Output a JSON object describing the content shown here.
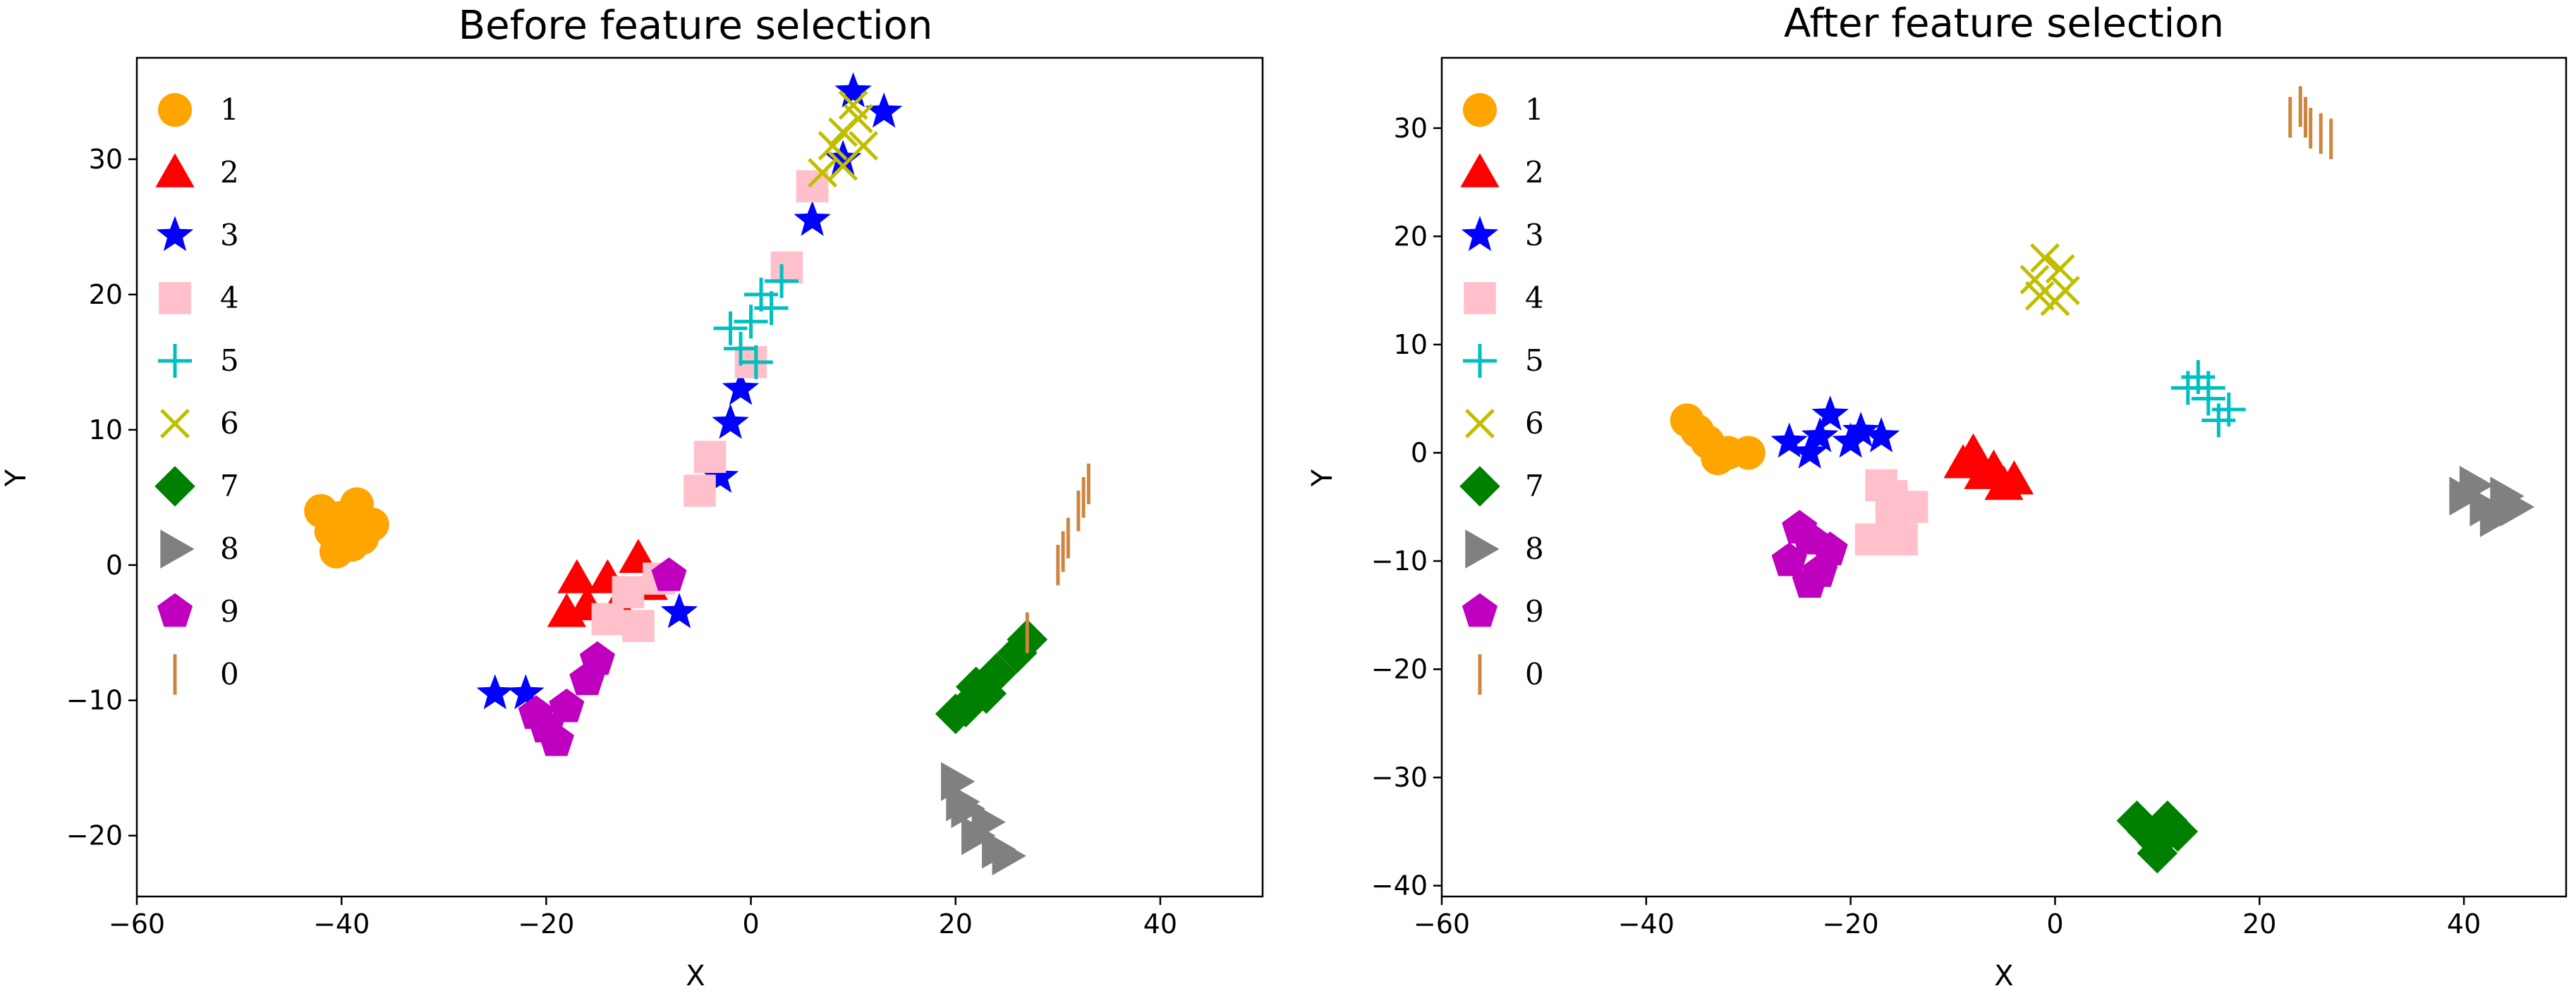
{
  "chart_data": [
    {
      "type": "scatter",
      "title": "Before feature selection",
      "xlabel": "X",
      "ylabel": "Y",
      "xlim": [
        -60,
        50
      ],
      "ylim": [
        -24.5,
        37.5
      ],
      "xticks": [
        -60,
        -40,
        -20,
        0,
        20,
        40
      ],
      "yticks": [
        -20,
        -10,
        0,
        10,
        20,
        30
      ],
      "legend": "top-left",
      "series": [
        {
          "name": "1",
          "marker": "circle",
          "color": "#FFA500",
          "points": [
            [
              -40,
              3.5
            ],
            [
              -38,
              2
            ],
            [
              -42,
              4
            ],
            [
              -39,
              1.5
            ],
            [
              -37,
              3
            ],
            [
              -41,
              2.5
            ],
            [
              -38.5,
              4.5
            ],
            [
              -40.5,
              1
            ]
          ]
        },
        {
          "name": "2",
          "marker": "triangle",
          "color": "#FF0000",
          "points": [
            [
              -17,
              -1
            ],
            [
              -14,
              -1
            ],
            [
              -11,
              0.5
            ],
            [
              -16,
              -3
            ],
            [
              -13,
              -3
            ],
            [
              -10,
              -1.5
            ],
            [
              -18,
              -3.5
            ]
          ]
        },
        {
          "name": "3",
          "marker": "star",
          "color": "#0000FF",
          "points": [
            [
              -25,
              -9.5
            ],
            [
              -22,
              -9.5
            ],
            [
              -7,
              -3.5
            ],
            [
              -3,
              6.5
            ],
            [
              -2,
              10.5
            ],
            [
              -1,
              13
            ],
            [
              6,
              25.5
            ],
            [
              9,
              30
            ],
            [
              13,
              33.5
            ],
            [
              10,
              35
            ]
          ]
        },
        {
          "name": "4",
          "marker": "square",
          "color": "#FFC0CB",
          "points": [
            [
              -14,
              -4
            ],
            [
              -11,
              -4.5
            ],
            [
              -9,
              -1
            ],
            [
              -12,
              -2
            ],
            [
              -5,
              5.5
            ],
            [
              -4,
              8
            ],
            [
              0,
              15
            ],
            [
              3.5,
              22
            ],
            [
              6,
              28
            ]
          ]
        },
        {
          "name": "5",
          "marker": "plus",
          "color": "#00BFBF",
          "points": [
            [
              -1,
              16
            ],
            [
              0,
              18
            ],
            [
              1,
              20
            ],
            [
              3,
              21
            ],
            [
              -2,
              17.5
            ],
            [
              0.5,
              15
            ],
            [
              2,
              19
            ]
          ]
        },
        {
          "name": "6",
          "marker": "x",
          "color": "#BFBF00",
          "points": [
            [
              7,
              29
            ],
            [
              8,
              31
            ],
            [
              9,
              32
            ],
            [
              10,
              34
            ],
            [
              11,
              31
            ],
            [
              9,
              29.5
            ],
            [
              10.5,
              33
            ]
          ]
        },
        {
          "name": "7",
          "marker": "diamond",
          "color": "#008000",
          "points": [
            [
              20,
              -11
            ],
            [
              22,
              -9
            ],
            [
              24,
              -8
            ],
            [
              26,
              -6.5
            ],
            [
              27,
              -5.5
            ],
            [
              21,
              -10.5
            ],
            [
              23,
              -9.5
            ]
          ]
        },
        {
          "name": "8",
          "marker": "triangle-right",
          "color": "#808080",
          "points": [
            [
              20,
              -16
            ],
            [
              21,
              -18
            ],
            [
              22,
              -20
            ],
            [
              24,
              -21
            ],
            [
              25,
              -21.5
            ],
            [
              20.5,
              -17.5
            ],
            [
              23,
              -19
            ]
          ]
        },
        {
          "name": "9",
          "marker": "pentagon",
          "color": "#BF00BF",
          "points": [
            [
              -20,
              -12
            ],
            [
              -18,
              -10.5
            ],
            [
              -16,
              -8.5
            ],
            [
              -15,
              -7
            ],
            [
              -21,
              -11
            ],
            [
              -19,
              -13
            ],
            [
              -8,
              -0.8
            ]
          ]
        },
        {
          "name": "0",
          "marker": "vline",
          "color": "#CD853F",
          "points": [
            [
              27,
              -5
            ],
            [
              30,
              0
            ],
            [
              31,
              2
            ],
            [
              32,
              4
            ],
            [
              33,
              6
            ],
            [
              30.5,
              1
            ],
            [
              32.5,
              5
            ]
          ]
        }
      ]
    },
    {
      "type": "scatter",
      "title": "After feature selection",
      "xlabel": "X",
      "ylabel": "Y",
      "xlim": [
        -60,
        50
      ],
      "ylim": [
        -41,
        36.5
      ],
      "xticks": [
        -60,
        -40,
        -20,
        0,
        20,
        40
      ],
      "yticks": [
        -40,
        -30,
        -20,
        -10,
        0,
        10,
        20,
        30
      ],
      "legend": "top-left",
      "series": [
        {
          "name": "1",
          "marker": "circle",
          "color": "#FFA500",
          "points": [
            [
              -36,
              3
            ],
            [
              -34,
              1
            ],
            [
              -32,
              0
            ],
            [
              -30,
              0
            ],
            [
              -35,
              2
            ],
            [
              -33,
              -0.5
            ]
          ]
        },
        {
          "name": "2",
          "marker": "triangle",
          "color": "#FF0000",
          "points": [
            [
              -9,
              -1
            ],
            [
              -7,
              -2
            ],
            [
              -5,
              -3
            ],
            [
              -8,
              0
            ],
            [
              -6,
              -1.5
            ],
            [
              -4,
              -2.5
            ]
          ]
        },
        {
          "name": "3",
          "marker": "star",
          "color": "#0000FF",
          "points": [
            [
              -26,
              1
            ],
            [
              -23,
              1.5
            ],
            [
              -20,
              1
            ],
            [
              -17,
              1.5
            ],
            [
              -22,
              3.5
            ],
            [
              -24,
              0
            ],
            [
              -19,
              2
            ]
          ]
        },
        {
          "name": "4",
          "marker": "square",
          "color": "#FFC0CB",
          "points": [
            [
              -18,
              -8
            ],
            [
              -16,
              -6
            ],
            [
              -14,
              -5
            ],
            [
              -17,
              -3
            ],
            [
              -15,
              -8
            ],
            [
              -16,
              -4
            ]
          ]
        },
        {
          "name": "5",
          "marker": "plus",
          "color": "#00BFBF",
          "points": [
            [
              13,
              6
            ],
            [
              15,
              5
            ],
            [
              17,
              4
            ],
            [
              14,
              7
            ],
            [
              16,
              3
            ],
            [
              15,
              6
            ]
          ]
        },
        {
          "name": "6",
          "marker": "x",
          "color": "#BFBF00",
          "points": [
            [
              -2,
              16
            ],
            [
              0,
              14
            ],
            [
              1,
              15
            ],
            [
              -1,
              18
            ],
            [
              0.5,
              17
            ],
            [
              -1.5,
              14.5
            ]
          ]
        },
        {
          "name": "7",
          "marker": "diamond",
          "color": "#008000",
          "points": [
            [
              8,
              -34
            ],
            [
              10,
              -36
            ],
            [
              11,
              -34
            ],
            [
              9,
              -35
            ],
            [
              10,
              -37
            ],
            [
              12,
              -35
            ]
          ]
        },
        {
          "name": "8",
          "marker": "triangle-right",
          "color": "#808080",
          "points": [
            [
              40,
              -4
            ],
            [
              42,
              -5
            ],
            [
              44,
              -4
            ],
            [
              43,
              -6
            ],
            [
              41,
              -3
            ],
            [
              45,
              -5
            ]
          ]
        },
        {
          "name": "9",
          "marker": "pentagon",
          "color": "#BF00BF",
          "points": [
            [
              -26,
              -10
            ],
            [
              -24,
              -8
            ],
            [
              -23,
              -11
            ],
            [
              -25,
              -7
            ],
            [
              -22,
              -9
            ],
            [
              -24,
              -12
            ]
          ]
        },
        {
          "name": "0",
          "marker": "vline",
          "color": "#CD853F",
          "points": [
            [
              23,
              31
            ],
            [
              24,
              32
            ],
            [
              25,
              30
            ],
            [
              26,
              29.5
            ],
            [
              27,
              29
            ],
            [
              24.5,
              31
            ]
          ]
        }
      ]
    }
  ]
}
